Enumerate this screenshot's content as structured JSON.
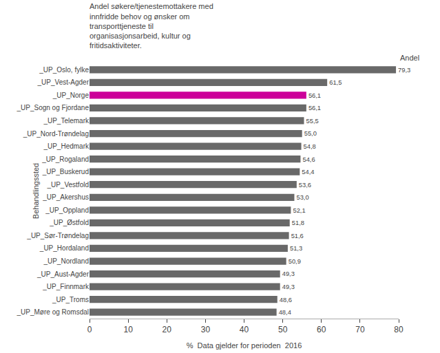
{
  "chart_data": {
    "type": "bar",
    "orientation": "horizontal",
    "title": "Andel søkere/tjenestemottakere med\ninnfridde behov og ønsker om\ntransporttjeneste til\norganisasjonsarbeid, kultur og\nfritidsaktiviteter.",
    "ylabel": "Behandlingssted",
    "xlabel": "%  Data gjelder for perioden  2016",
    "annotations": [
      "Andel"
    ],
    "categories": [
      "_UP_Oslo, fylke",
      "_UP_Vest-Agder",
      "_UP_Norge",
      "_UP_Sogn og Fjordane",
      "_UP_Telemark",
      "_UP_Nord-Trøndelag",
      "_UP_Hedmark",
      "_UP_Rogaland",
      "_UP_Buskerud",
      "_UP_Vestfold",
      "_UP_Akershus",
      "_UP_Oppland",
      "_UP_Østfold",
      "_UP_Sør-Trøndelag",
      "_UP_Hordaland",
      "_UP_Nordland",
      "_UP_Aust-Agder",
      "_UP_Finnmark",
      "_UP_Troms",
      "_UP_Møre og Romsdal"
    ],
    "values": [
      79.3,
      61.5,
      56.1,
      56.1,
      55.5,
      55.0,
      54.8,
      54.6,
      54.4,
      53.6,
      53.0,
      52.1,
      51.8,
      51.6,
      51.3,
      50.9,
      49.3,
      49.3,
      48.6,
      48.4
    ],
    "value_labels": [
      "79,3",
      "61,5",
      "56,1",
      "56,1",
      "55,5",
      "55,0",
      "54,8",
      "54,6",
      "54,4",
      "53,6",
      "53,0",
      "52,1",
      "51,8",
      "51,6",
      "51,3",
      "50,9",
      "49,3",
      "49,3",
      "48,6",
      "48,4"
    ],
    "data_labels": true,
    "colors": [
      "#696969",
      "#696969",
      "#cc0099",
      "#696969",
      "#696969",
      "#696969",
      "#696969",
      "#696969",
      "#696969",
      "#696969",
      "#696969",
      "#696969",
      "#696969",
      "#696969",
      "#696969",
      "#696969",
      "#696969",
      "#696969",
      "#696969",
      "#696969"
    ],
    "xlim": [
      0,
      80
    ],
    "xticks": [
      0,
      10,
      20,
      30,
      40,
      50,
      60,
      70,
      80
    ],
    "grid": false
  }
}
